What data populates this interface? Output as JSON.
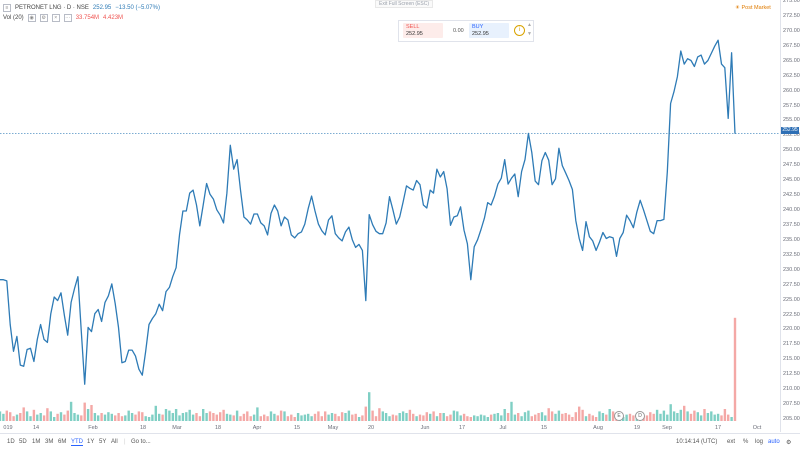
{
  "legend": {
    "symbol": "PETRONET LNG · D · NSE",
    "price": "252.95",
    "change": "−13.50 (−5.07%)",
    "vol_label": "Vol (20)",
    "vol_value": "33.754M",
    "vol_value2": "4.423M"
  },
  "exit_fullscreen": "Exit Full Screen (ESC)",
  "trade_widget": {
    "sell_label": "SELL",
    "sell_price": "252.95",
    "spread": "0.00",
    "buy_label": "BUY",
    "buy_price": "252.95",
    "info": "i"
  },
  "post_market": "Post Market",
  "current_price_tag": "252.95",
  "price_ticks": [
    "275.00",
    "272.50",
    "270.00",
    "267.50",
    "265.00",
    "262.50",
    "260.00",
    "257.50",
    "255.00",
    "252.50",
    "250.00",
    "247.50",
    "245.00",
    "242.50",
    "240.00",
    "237.50",
    "235.00",
    "232.50",
    "230.00",
    "227.50",
    "225.00",
    "222.50",
    "220.00",
    "217.50",
    "215.00",
    "212.50",
    "210.00",
    "207.50",
    "205.00"
  ],
  "time_labels": [
    "019",
    "14",
    "Feb",
    "18",
    "Mar",
    "18",
    "Apr",
    "15",
    "May",
    "20",
    "Jun",
    "17",
    "Jul",
    "15",
    "Aug",
    "19",
    "Sep",
    "17",
    "Oct"
  ],
  "event_markers": [
    "E",
    "D"
  ],
  "bottom_bar": {
    "timeframes": [
      "1D",
      "5D",
      "1M",
      "3M",
      "6M",
      "YTD",
      "1Y",
      "5Y",
      "All"
    ],
    "active": "YTD",
    "goto": "Go to...",
    "clock": "10:14:14 (UTC)",
    "ext": "ext",
    "percent": "%",
    "log": "log",
    "auto": "auto"
  },
  "colors": {
    "line": "#2e7bb6",
    "vol_up": "#7fcfc4",
    "vol_down": "#f4a8a6",
    "active_tf": "#2962ff"
  },
  "chart_data": {
    "type": "line",
    "title": "PETRONET LNG · D · NSE",
    "ylim": [
      205,
      275
    ],
    "x_range": [
      "2019-01-01",
      "2019-10-08"
    ],
    "prices": [
      228.5,
      228.5,
      228.3,
      221,
      216.5,
      219,
      214.2,
      214,
      216.8,
      217,
      214.8,
      218.5,
      221,
      218.5,
      218,
      222.8,
      225.6,
      225,
      226.3,
      222.5,
      219.2,
      224.7,
      227,
      229,
      219.8,
      211,
      220.5,
      219.8,
      222.8,
      223.5,
      221.5,
      224.7,
      225.8,
      227.8,
      224.5,
      220.5,
      214.6,
      214.8,
      216.7,
      216.7,
      215.7,
      213.5,
      212.5,
      216.4,
      221,
      222,
      222.8,
      224.4,
      223.3,
      226.5,
      227.2,
      229,
      230.5,
      236,
      240,
      240,
      243,
      243.5,
      241,
      237.5,
      241,
      244.6,
      242.8,
      242,
      240.2,
      239.3,
      238,
      243,
      251,
      247,
      248.6,
      243.5,
      239,
      238.5,
      237.8,
      239.5,
      239.5,
      238,
      237.5,
      236,
      239.6,
      241,
      240,
      237.5,
      239,
      238.5,
      236,
      235.5,
      236.2,
      236.5,
      237.8,
      240.4,
      242.5,
      240,
      237.8,
      236.7,
      236,
      238.5,
      239.2,
      236.2,
      235.5,
      235,
      236.5,
      237.3,
      235.2,
      233.9,
      234.4,
      233.4,
      225,
      239.4,
      237.7,
      236.6,
      236.2,
      236.2,
      238,
      242.4,
      240.2,
      237.8,
      239,
      241.5,
      244.2,
      243.8,
      243.5,
      245.1,
      244.4,
      241,
      240.5,
      243.5,
      243,
      247,
      245.7,
      246.6,
      243.7,
      237.6,
      239,
      239.2,
      240.7,
      236.8,
      234.5,
      228.5,
      234,
      235.2,
      236.9,
      238.8,
      241.4,
      241,
      242.5,
      244.5,
      245.5,
      248.6,
      244.5,
      245.5,
      246.2,
      242.4,
      246.6,
      248.6,
      253,
      249.8,
      245,
      244.4,
      248.4,
      249.8,
      248.5,
      244.4,
      245.4,
      250.5,
      247.6,
      246.4,
      245.1,
      243.6,
      238.4,
      235.4,
      233.4,
      238.2,
      235.7,
      235,
      233.4,
      234.8,
      236.4,
      235.4,
      235.7,
      235.5,
      232.4,
      235.4,
      236.4,
      239.3,
      238.4,
      237.2,
      239.8,
      241.8,
      240.2,
      238.4,
      236.6,
      236.2,
      238.4,
      238.4,
      238.6,
      246.5,
      258,
      260,
      262.5,
      266.8,
      264.6,
      265.5,
      265.2,
      264.2,
      265.8,
      266.1,
      264.6,
      265.2,
      266.4,
      267.6,
      268.6,
      264.6,
      264,
      255.5,
      266.5,
      252.95
    ],
    "volumes": [
      1.2,
      0.9,
      1.3,
      1.1,
      0.6,
      0.8,
      1.0,
      1.7,
      1.2,
      0.6,
      1.4,
      0.8,
      1.0,
      0.7,
      1.6,
      1.2,
      0.5,
      0.9,
      1.1,
      0.8,
      1.3,
      2.4,
      1.0,
      0.8,
      0.7,
      2.3,
      1.5,
      2.0,
      1.0,
      0.7,
      1.0,
      0.8,
      1.1,
      0.9,
      0.7,
      1.0,
      0.6,
      0.7,
      1.3,
      1.0,
      0.8,
      1.2,
      1.1,
      0.6,
      0.5,
      0.8,
      1.9,
      0.9,
      0.8,
      1.5,
      1.3,
      1.0,
      1.5,
      0.7,
      1.0,
      1.1,
      1.4,
      0.8,
      1.0,
      0.6,
      1.5,
      1.0,
      1.2,
      1.0,
      0.8,
      1.1,
      1.4,
      0.9,
      0.8,
      0.7,
      1.3,
      0.6,
      0.9,
      1.2,
      0.6,
      0.8,
      1.7,
      0.6,
      0.8,
      0.6,
      1.2,
      0.9,
      0.7,
      1.3,
      1.2,
      0.6,
      0.8,
      0.5,
      1.0,
      0.7,
      0.8,
      0.9,
      0.6,
      0.9,
      1.2,
      0.6,
      1.2,
      0.8,
      1.0,
      0.9,
      0.6,
      1.1,
      1.0,
      1.3,
      0.8,
      0.9,
      0.5,
      0.7,
      1.8,
      3.6,
      1.3,
      0.6,
      1.6,
      1.2,
      1.0,
      0.6,
      0.8,
      0.7,
      1.0,
      1.2,
      1.0,
      1.4,
      0.9,
      0.6,
      0.8,
      0.7,
      1.1,
      0.9,
      1.2,
      0.6,
      1.0,
      1.0,
      0.6,
      0.8,
      1.3,
      1.2,
      0.7,
      0.9,
      0.6,
      0.5,
      0.7,
      0.6,
      0.8,
      0.7,
      0.5,
      0.8,
      0.9,
      1.0,
      0.7,
      1.5,
      1.0,
      2.4,
      0.8,
      1.0,
      0.6,
      1.1,
      1.3,
      0.6,
      0.8,
      1.0,
      1.1,
      0.7,
      1.6,
      1.2,
      0.9,
      1.3,
      0.9,
      1.0,
      0.8,
      0.5,
      1.1,
      1.8,
      1.4,
      0.6,
      0.9,
      0.7,
      0.5,
      1.2,
      1.0,
      0.8,
      1.5,
      1.2,
      0.6,
      0.8,
      0.5,
      0.8,
      0.9,
      0.7,
      0.6,
      1.0,
      0.6,
      0.7,
      1.1,
      0.9,
      1.4,
      0.9,
      1.3,
      0.8,
      2.1,
      1.2,
      1.0,
      1.4,
      1.9,
      1.2,
      0.9,
      1.3,
      1.1,
      0.7,
      1.5,
      1.0,
      1.2,
      0.8,
      0.9,
      0.7,
      1.5,
      0.8,
      0.5,
      12.9
    ]
  }
}
